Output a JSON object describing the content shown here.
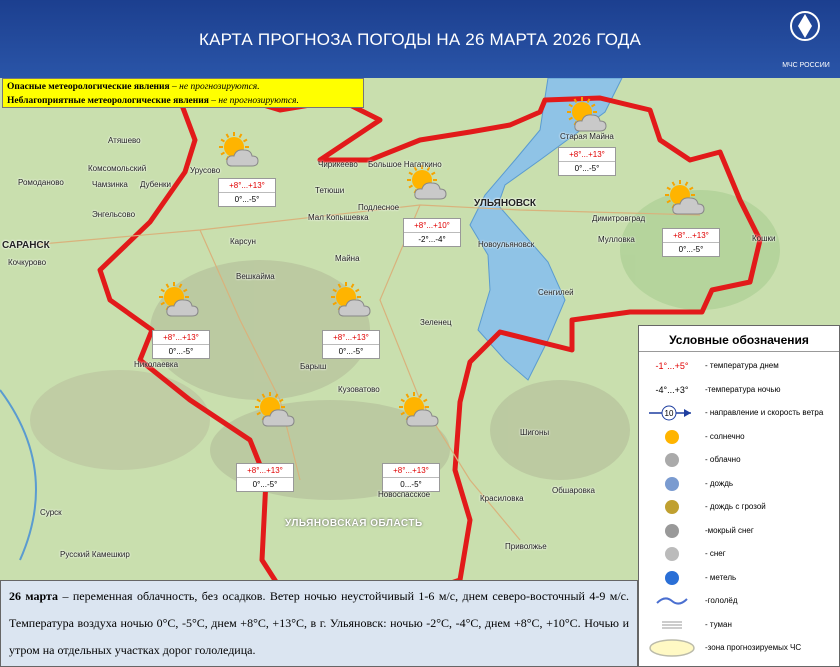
{
  "header": {
    "title": "КАРТА ПРОГНОЗА ПОГОДЫ НА 26 МАРТА 2026 ГОДА",
    "logo": "МЧС РОССИИ"
  },
  "warnings": [
    {
      "label": "Опасные метеорологические явления",
      "text": "– не прогнозируются."
    },
    {
      "label": "Неблагоприятные метеорологические явления",
      "text": "– не прогнозируются."
    }
  ],
  "forecasts": [
    {
      "day": "+8°...+13°",
      "night": "0°...-5°"
    },
    {
      "day": "+8°...+10°",
      "night": "-2°...-4°"
    },
    {
      "day": "+8°...+13°",
      "night": "0°...-5°"
    },
    {
      "day": "+8°...+13°",
      "night": "0°...-5°"
    },
    {
      "day": "+8°...+13°",
      "night": "0°...-5°"
    },
    {
      "day": "+8°...+13°",
      "night": "0°...-5°"
    },
    {
      "day": "+8°...+13°",
      "night": "0°...-5°"
    },
    {
      "day": "+8°...+13°",
      "night": "0...-5°"
    }
  ],
  "places": [
    "Атяшево",
    "Комсомольский",
    "Ромоданово",
    "Чамзинка",
    "Урусово",
    "Дубенки",
    "Энгельсово",
    "САРАНСК",
    "Кочкурово",
    "Чирикеево",
    "Большое Нагаткино",
    "Тетюши",
    "Подлесное",
    "Мал Копышевка",
    "УЛЬЯНОВСК",
    "Майна",
    "Новоульяновск",
    "Старая Майна",
    "Димитровград",
    "Мулловка",
    "Кошки",
    "Карсун",
    "Вешкайма",
    "Сенгилей",
    "Зеленец",
    "Барыш",
    "Николаевка",
    "Кузоватово",
    "Шигоны",
    "Новоспасское",
    "Сурск",
    "Русский Камешкир",
    "Красиловка",
    "Обшаровка",
    "Приволжье",
    "УЛЬЯНОВСКАЯ ОБЛАСТЬ"
  ],
  "legend": {
    "title": "Условные обозначения",
    "items": [
      {
        "symbol": "-1°...+5°",
        "text": "- температура днем"
      },
      {
        "symbol": "-4°...+3°",
        "text": "-температура ночью"
      },
      {
        "symbol": "10",
        "text": "- направление и скорость ветра"
      },
      {
        "text": "- солнечно"
      },
      {
        "text": "- облачно"
      },
      {
        "text": "- дождь"
      },
      {
        "text": "- дождь с грозой"
      },
      {
        "text": "-мокрый снег"
      },
      {
        "text": "- снег"
      },
      {
        "text": "- метель"
      },
      {
        "text": "-гололёд"
      },
      {
        "text": "- туман"
      },
      {
        "text": "-зона прогнозируемых ЧС"
      }
    ]
  },
  "summary": {
    "date": "26 марта",
    "text": "– переменная облачность, без осадков.  Ветер ночью неустойчивый 1-6 м/с, днем северо-восточный 4-9 м/с. Температура воздуха ночью 0°С, -5°С, днем +8°С, +13°С, в г. Ульяновск: ночью -2°С, -4°С, днем +8°С, +10°С. Ночью и утром на отдельных участках дорог гололедица."
  }
}
